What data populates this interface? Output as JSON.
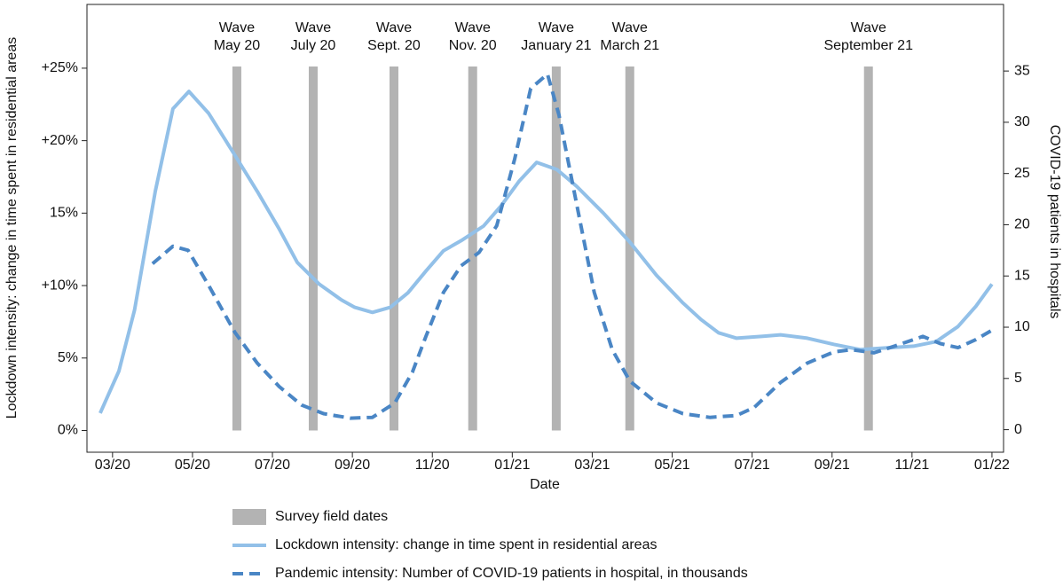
{
  "chart_data": {
    "type": "line",
    "x_label": "Date",
    "y_label": "Lockdown intensity: change in time spent in residential areas",
    "y2_label": "COVID-19 patients in hospitals",
    "xlim": [
      2.36,
      25.29
    ],
    "xticks": [
      {
        "value": 3,
        "label": "03/20"
      },
      {
        "value": 5,
        "label": "05/20"
      },
      {
        "value": 7,
        "label": "07/20"
      },
      {
        "value": 9,
        "label": "09/20"
      },
      {
        "value": 11,
        "label": "11/20"
      },
      {
        "value": 13,
        "label": "01/21"
      },
      {
        "value": 15,
        "label": "03/21"
      },
      {
        "value": 17,
        "label": "05/21"
      },
      {
        "value": 19,
        "label": "07/21"
      },
      {
        "value": 21,
        "label": "09/21"
      },
      {
        "value": 23,
        "label": "11/21"
      },
      {
        "value": 25,
        "label": "01/22"
      }
    ],
    "ylim": [
      -1.5,
      29.4
    ],
    "yticks": [
      {
        "value": 0,
        "label": "0%"
      },
      {
        "value": 5,
        "label": "5%"
      },
      {
        "value": 10,
        "label": "+10%"
      },
      {
        "value": 15,
        "label": "15%"
      },
      {
        "value": 20,
        "label": "+20%"
      },
      {
        "value": 25,
        "label": "+25%"
      }
    ],
    "y2lim": [
      -2.2,
      41.5
    ],
    "y2ticks": [
      0,
      5,
      10,
      15,
      20,
      25,
      30,
      35
    ],
    "survey_waves": {
      "name": "Survey field dates",
      "color": "#b3b3b3",
      "x": [
        6.11,
        8.02,
        10.04,
        12.01,
        14.1,
        15.94,
        21.91
      ],
      "labels": [
        [
          "Wave",
          "May 20"
        ],
        [
          "Wave",
          "July 20"
        ],
        [
          "Wave",
          "Sept. 20"
        ],
        [
          "Wave",
          "Nov. 20"
        ],
        [
          "Wave",
          "January 21"
        ],
        [
          "Wave",
          "March 21"
        ],
        [
          "Wave",
          "September 21"
        ]
      ]
    },
    "series": [
      {
        "name": "Lockdown intensity: change in time spent in residential areas",
        "color": "#92c0e8",
        "dash": false,
        "axis": "y",
        "x": [
          2.69,
          3.16,
          3.55,
          4.07,
          4.51,
          4.91,
          5.4,
          6.06,
          6.62,
          7.17,
          7.62,
          8.17,
          8.73,
          9.06,
          9.5,
          9.95,
          10.39,
          10.84,
          11.28,
          11.72,
          12.28,
          12.72,
          13.17,
          13.61,
          14.12,
          14.61,
          15.28,
          15.94,
          16.61,
          17.27,
          17.72,
          18.16,
          18.61,
          19.27,
          19.71,
          20.38,
          21.05,
          21.71,
          22.38,
          23.04,
          23.6,
          24.15,
          24.6,
          25.0
        ],
        "values": [
          1.2,
          4.1,
          8.3,
          16.5,
          22.2,
          23.4,
          21.9,
          19.0,
          16.5,
          13.9,
          11.6,
          10.1,
          9.0,
          8.5,
          8.15,
          8.5,
          9.5,
          11.0,
          12.4,
          13.1,
          14.1,
          15.5,
          17.2,
          18.5,
          18.0,
          16.85,
          15.0,
          13.0,
          10.7,
          8.8,
          7.66,
          6.74,
          6.37,
          6.5,
          6.6,
          6.37,
          5.94,
          5.58,
          5.7,
          5.82,
          6.13,
          7.17,
          8.58,
          10.1
        ]
      },
      {
        "name": "Pandemic intensity: Number of COVID-19 patients in hospital, in thousands",
        "color": "#4a86c5",
        "dash": true,
        "axis": "y2",
        "x": [
          4.0,
          4.51,
          4.89,
          5.4,
          6.06,
          6.62,
          7.17,
          7.73,
          8.28,
          8.95,
          9.5,
          10.06,
          10.5,
          10.84,
          11.28,
          11.72,
          12.17,
          12.61,
          13.06,
          13.46,
          13.88,
          14.17,
          14.61,
          15.05,
          15.5,
          15.94,
          16.61,
          17.27,
          17.94,
          18.61,
          19.05,
          19.71,
          20.38,
          21.05,
          21.49,
          22.05,
          22.6,
          23.27,
          23.71,
          24.15,
          24.6,
          25.0
        ],
        "values": [
          16.2,
          17.9,
          17.5,
          14.1,
          9.5,
          6.5,
          4.2,
          2.4,
          1.56,
          1.12,
          1.2,
          2.6,
          5.6,
          9.1,
          13.4,
          16.0,
          17.3,
          19.9,
          26.4,
          33.3,
          34.7,
          30.7,
          22.0,
          13.4,
          7.8,
          4.75,
          2.6,
          1.56,
          1.2,
          1.38,
          2.16,
          4.6,
          6.5,
          7.6,
          7.8,
          7.5,
          8.2,
          9.1,
          8.4,
          8.0,
          8.8,
          9.7
        ]
      }
    ]
  }
}
